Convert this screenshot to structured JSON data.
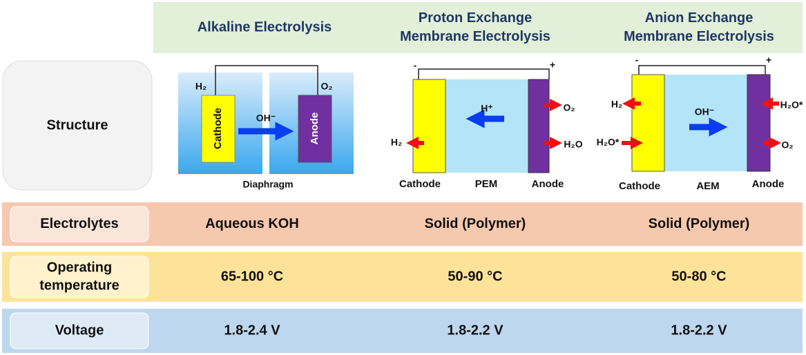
{
  "columns": [
    [
      "Alkaline Electrolysis"
    ],
    [
      "Proton Exchange",
      "Membrane Electrolysis"
    ],
    [
      "Anion Exchange",
      "Membrane Electrolysis"
    ]
  ],
  "structure_label": "Structure",
  "diagrams": [
    {
      "cathode": "Cathode",
      "anode": "Anode",
      "ion": "OH⁻",
      "left_gas": "H₂",
      "right_gas": "O₂",
      "separator": "Diaphragm"
    },
    {
      "minus": "-",
      "plus": "+",
      "ion": "H⁺",
      "o2": "O₂",
      "h2o": "H₂O",
      "h2": "H₂",
      "cathode": "Cathode",
      "membrane": "PEM",
      "anode": "Anode"
    },
    {
      "minus": "-",
      "plus": "+",
      "ion": "OH⁻",
      "h2": "H₂",
      "h2o_in": "H₂O*",
      "h2o_out": "H₂O*",
      "o2": "O₂",
      "cathode": "Cathode",
      "membrane": "AEM",
      "anode": "Anode"
    }
  ],
  "rows": [
    {
      "label": [
        "Electrolytes"
      ],
      "values": [
        "Aqueous KOH",
        "Solid (Polymer)",
        "Solid (Polymer)"
      ]
    },
    {
      "label": [
        "Operating",
        "temperature"
      ],
      "values": [
        "65-100 °C",
        "50-90 °C",
        "50-80 °C"
      ]
    },
    {
      "label": [
        "Voltage"
      ],
      "values": [
        "1.8-2.4 V",
        "1.8-2.2 V",
        "1.8-2.2 V"
      ]
    }
  ]
}
